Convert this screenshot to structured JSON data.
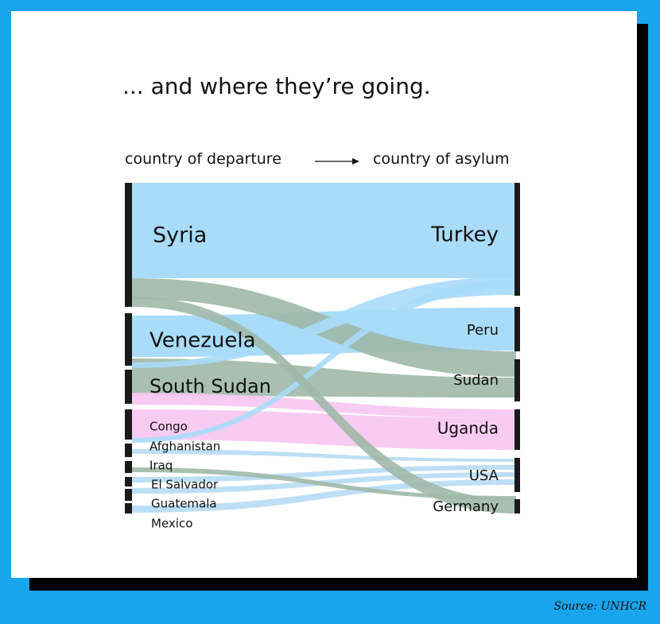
{
  "title": "... and where they’re going.",
  "header": {
    "left_label": "country of departure",
    "right_label": "country of asylum"
  },
  "source": "Source: UNHCR",
  "colors": {
    "background": "#18a5ee",
    "blue": "#a8dcf8",
    "gray_green": "#9fb8a8",
    "pink": "#f7c6f1",
    "light_blue_link": "#b6dcf4",
    "bar": "#1a1a1a"
  },
  "chart_data": {
    "type": "sankey",
    "title": "... and where they’re going.",
    "xlabel": "country of departure",
    "ylabel": "country of asylum",
    "sources": [
      "Syria",
      "Venezuela",
      "South Sudan",
      "Congo",
      "Afghanistan",
      "Iraq",
      "El Salvador",
      "Guatemala",
      "Mexico"
    ],
    "targets": [
      "Turkey",
      "Peru",
      "Sudan",
      "Uganda",
      "USA",
      "Germany"
    ],
    "flows": [
      {
        "from": "Syria",
        "to": "Turkey",
        "color": "#a8dcf8"
      },
      {
        "from": "Syria",
        "to": "Sudan",
        "color": "#9fb8a8"
      },
      {
        "from": "Syria",
        "to": "Germany",
        "color": "#9fb8a8"
      },
      {
        "from": "Venezuela",
        "to": "Peru",
        "color": "#a8dcf8"
      },
      {
        "from": "South Sudan",
        "to": "Sudan",
        "color": "#9fb8a8"
      },
      {
        "from": "South Sudan",
        "to": "Turkey",
        "color": "#a8dcf8"
      },
      {
        "from": "South Sudan",
        "to": "Uganda",
        "color": "#f7c6f1"
      },
      {
        "from": "Congo",
        "to": "Uganda",
        "color": "#f7c6f1"
      },
      {
        "from": "Congo",
        "to": "Turkey",
        "color": "#a8dcf8"
      },
      {
        "from": "Afghanistan",
        "to": "USA",
        "color": "#b6dcf4"
      },
      {
        "from": "Iraq",
        "to": "Germany",
        "color": "#9fb8a8"
      },
      {
        "from": "El Salvador",
        "to": "USA",
        "color": "#b6dcf4"
      },
      {
        "from": "Guatemala",
        "to": "USA",
        "color": "#b6dcf4"
      },
      {
        "from": "Mexico",
        "to": "USA",
        "color": "#b6dcf4"
      }
    ]
  }
}
